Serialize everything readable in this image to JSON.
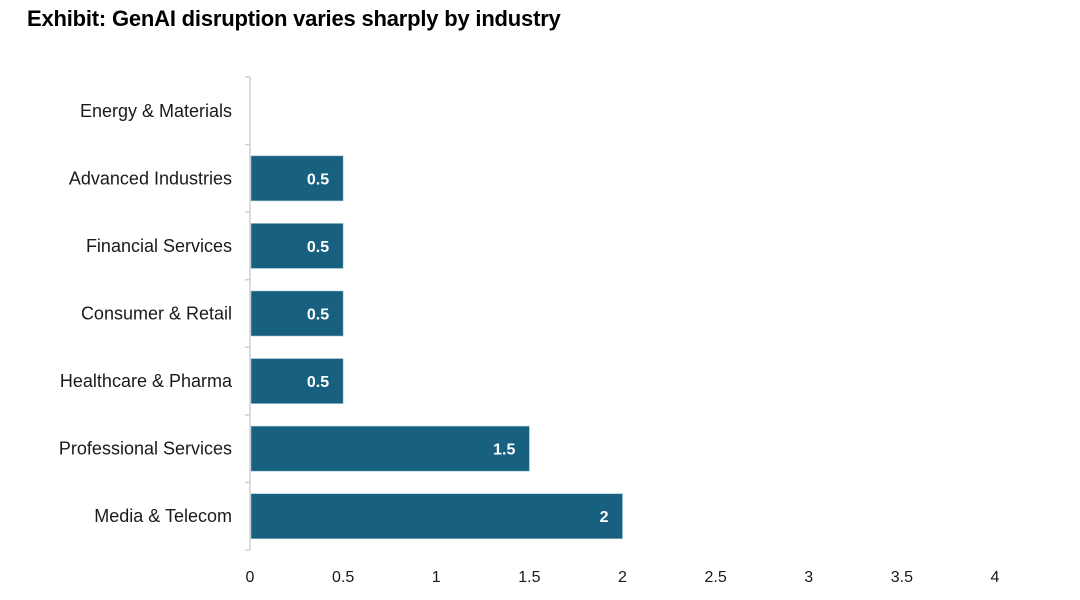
{
  "chart_data": {
    "type": "bar",
    "orientation": "horizontal",
    "title": "Exhibit: GenAI disruption varies sharply by industry",
    "categories": [
      "Energy & Materials",
      "Advanced Industries",
      "Financial Services",
      "Consumer & Retail",
      "Healthcare & Pharma",
      "Professional Services",
      "Media & Telecom"
    ],
    "values": [
      0,
      0.5,
      0.5,
      0.5,
      0.5,
      1.5,
      2
    ],
    "data_labels": [
      "",
      "0.5",
      "0.5",
      "0.5",
      "0.5",
      "1.5",
      "2"
    ],
    "xticks": [
      "0",
      "0.5",
      "1",
      "1.5",
      "2",
      "2.5",
      "3",
      "3.5",
      "4"
    ],
    "xlim": [
      0,
      4
    ],
    "xlabel": "",
    "ylabel": "",
    "grid": false,
    "legend": "none",
    "bar_color": "#17607f"
  }
}
